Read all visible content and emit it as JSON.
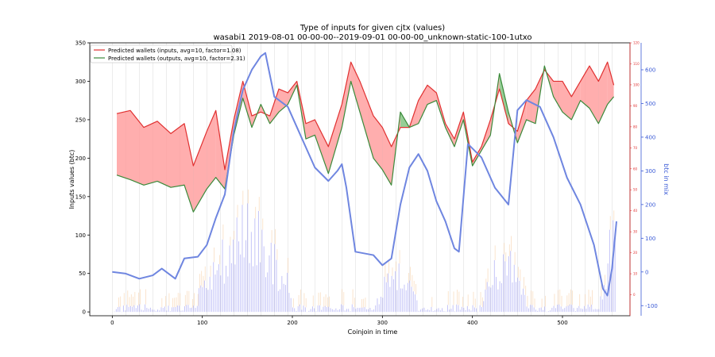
{
  "chart_data": {
    "type": "line",
    "title": "Type of inputs for given cjtx (values)",
    "subtitle": "wasabi1 2019-08-01 00-00-00--2019-09-01 00-00-00_unknown-static-100-1utxo",
    "xlabel": "Coinjoin in time",
    "ylabel": "Inputs values (btc)",
    "y2label": "btc in mix",
    "xlim": [
      -25,
      575
    ],
    "ylim": [
      -5,
      350
    ],
    "y2lim": [
      -130,
      680
    ],
    "y3lim": [
      -10,
      120
    ],
    "xticks": [
      0,
      100,
      200,
      300,
      400,
      500
    ],
    "yticks": [
      0,
      50,
      100,
      150,
      200,
      250,
      300,
      350
    ],
    "y2ticks": [
      -100,
      0,
      100,
      200,
      300,
      400,
      500,
      600
    ],
    "y3ticks": [
      0,
      10,
      20,
      30,
      40,
      50,
      60,
      70,
      80,
      90,
      100,
      110,
      120
    ],
    "legend_position": "top-left",
    "colors": {
      "inputs_line": "#e03030",
      "outputs_line": "#3a8a3a",
      "fill_red": "#ff9a9a",
      "fill_green": "#7cc27c",
      "mix_line": "#6f86e0",
      "bars": "#8888f0",
      "bars_light": "#f5c89a",
      "right_axis_red": "#e03030",
      "right_axis_blue": "#3b5bd6"
    },
    "series": [
      {
        "name": "Predicted wallets (inputs, avg=10, factor=1.08)",
        "x": [
          5,
          20,
          35,
          50,
          65,
          80,
          90,
          95,
          105,
          115,
          125,
          135,
          145,
          155,
          165,
          175,
          185,
          195,
          205,
          215,
          225,
          240,
          255,
          265,
          275,
          290,
          300,
          310,
          320,
          330,
          340,
          350,
          360,
          370,
          380,
          390,
          400,
          410,
          420,
          430,
          440,
          450,
          460,
          470,
          480,
          490,
          500,
          510,
          520,
          530,
          540,
          550,
          557
        ],
        "values": [
          258,
          262,
          240,
          248,
          232,
          245,
          190,
          205,
          235,
          262,
          185,
          250,
          300,
          255,
          260,
          255,
          290,
          285,
          300,
          245,
          250,
          215,
          270,
          325,
          300,
          255,
          240,
          215,
          240,
          240,
          275,
          295,
          285,
          245,
          225,
          260,
          195,
          215,
          250,
          290,
          245,
          235,
          275,
          290,
          315,
          300,
          300,
          280,
          300,
          320,
          300,
          325,
          295
        ]
      },
      {
        "name": "Predicted wallets (outputs, avg=10, factor=2.31)",
        "x": [
          5,
          20,
          35,
          50,
          65,
          80,
          90,
          95,
          105,
          115,
          125,
          135,
          145,
          155,
          165,
          175,
          185,
          195,
          205,
          215,
          225,
          240,
          255,
          265,
          275,
          290,
          300,
          310,
          320,
          330,
          340,
          350,
          360,
          370,
          380,
          390,
          400,
          410,
          420,
          430,
          440,
          450,
          460,
          470,
          480,
          490,
          500,
          510,
          520,
          530,
          540,
          550,
          557
        ],
        "values": [
          178,
          172,
          165,
          170,
          162,
          165,
          130,
          140,
          160,
          175,
          160,
          230,
          278,
          240,
          270,
          245,
          260,
          270,
          295,
          225,
          230,
          180,
          240,
          300,
          260,
          200,
          185,
          165,
          260,
          240,
          245,
          270,
          275,
          240,
          215,
          250,
          190,
          210,
          230,
          310,
          260,
          220,
          250,
          245,
          320,
          280,
          260,
          250,
          275,
          265,
          245,
          270,
          280
        ]
      },
      {
        "name": "btc in mix",
        "x": [
          0,
          15,
          30,
          45,
          55,
          70,
          80,
          95,
          105,
          115,
          125,
          135,
          145,
          155,
          165,
          170,
          180,
          195,
          210,
          225,
          240,
          250,
          255,
          260,
          270,
          290,
          300,
          310,
          320,
          330,
          340,
          350,
          360,
          370,
          380,
          385,
          395,
          410,
          425,
          440,
          450,
          460,
          475,
          490,
          505,
          520,
          535,
          545,
          550,
          555,
          560
        ],
        "values": [
          0,
          -5,
          -20,
          -10,
          10,
          -20,
          40,
          45,
          80,
          160,
          230,
          420,
          540,
          600,
          640,
          650,
          520,
          490,
          400,
          310,
          270,
          300,
          320,
          250,
          60,
          50,
          20,
          40,
          200,
          310,
          350,
          300,
          210,
          150,
          70,
          60,
          380,
          340,
          250,
          200,
          480,
          510,
          490,
          400,
          280,
          200,
          80,
          -50,
          -70,
          10,
          150
        ]
      }
    ]
  }
}
